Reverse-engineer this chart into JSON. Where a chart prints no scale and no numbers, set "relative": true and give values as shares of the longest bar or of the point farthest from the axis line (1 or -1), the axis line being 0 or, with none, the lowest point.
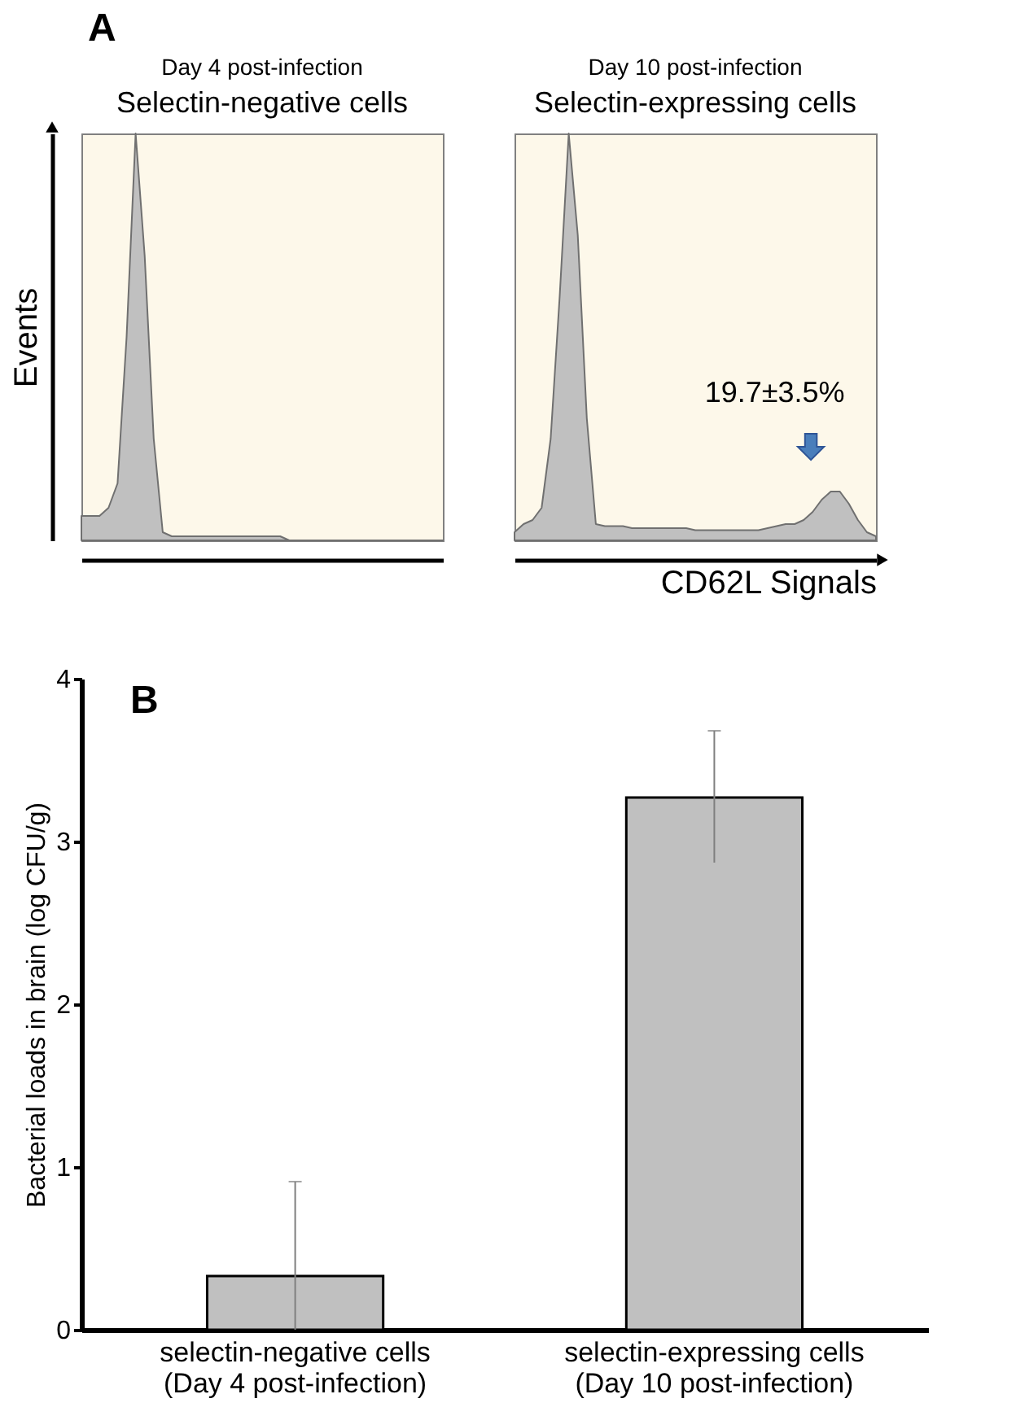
{
  "chart_data": [
    {
      "type": "area",
      "relative": true,
      "title": "Selectin-negative cells",
      "subtitle": "Day 4 post-infection",
      "ylabel": "Events",
      "tick_labels": false,
      "annotations": [
        "A"
      ],
      "categories": [
        null,
        null,
        null,
        null,
        null,
        null,
        null,
        null,
        null,
        null,
        null,
        null,
        null,
        null,
        null,
        null,
        null,
        null,
        null,
        null,
        null,
        null,
        null,
        null,
        null,
        null,
        null,
        null,
        null,
        null,
        null,
        null,
        null,
        null,
        null,
        null,
        null,
        null,
        null,
        null,
        null
      ],
      "series": [
        {
          "color": "#c0c0c0",
          "values": [
            0.06,
            0.06,
            0.06,
            0.08,
            0.14,
            0.5,
            1.0,
            0.7,
            0.25,
            0.02,
            0.01,
            0.01,
            0.01,
            0.01,
            0.01,
            0.01,
            0.01,
            0.01,
            0.01,
            0.01,
            0.01,
            0.01,
            0.01,
            0,
            0,
            0,
            0,
            0,
            0,
            0,
            0,
            0,
            0,
            0,
            0,
            0,
            0,
            0,
            0,
            0,
            0
          ]
        }
      ]
    },
    {
      "type": "area",
      "relative": true,
      "title": "Selectin-expressing cells",
      "subtitle": "Day 10 post-infection",
      "xlabel": "CD62L Signals",
      "tick_labels": false,
      "annotations": [
        "19.7±3.5%"
      ],
      "categories": [
        null,
        null,
        null,
        null,
        null,
        null,
        null,
        null,
        null,
        null,
        null,
        null,
        null,
        null,
        null,
        null,
        null,
        null,
        null,
        null,
        null,
        null,
        null,
        null,
        null,
        null,
        null,
        null,
        null,
        null,
        null,
        null,
        null,
        null,
        null,
        null,
        null,
        null,
        null,
        null,
        null
      ],
      "series": [
        {
          "color": "#c0c0c0",
          "values": [
            0.02,
            0.04,
            0.05,
            0.08,
            0.25,
            0.6,
            1.0,
            0.75,
            0.3,
            0.04,
            0.035,
            0.035,
            0.035,
            0.03,
            0.03,
            0.03,
            0.03,
            0.03,
            0.03,
            0.03,
            0.025,
            0.025,
            0.025,
            0.025,
            0.025,
            0.025,
            0.025,
            0.025,
            0.03,
            0.035,
            0.04,
            0.04,
            0.05,
            0.07,
            0.1,
            0.12,
            0.12,
            0.09,
            0.05,
            0.02,
            0.01
          ]
        }
      ]
    },
    {
      "type": "bar",
      "ylabel": "Bacterial loads in brain (log CFU/g)",
      "annotations": [
        "B"
      ],
      "ylim": [
        0,
        4
      ],
      "yticks": [
        0,
        1,
        2,
        3,
        4
      ],
      "grid": false,
      "categories": [
        "selectin-negative cells\n(Day 4 post-infection)",
        "selectin-expressing cells\n(Day 10 post-infection)"
      ],
      "series": [
        {
          "color": "#c0c0c0",
          "values": [
            0.33,
            3.27
          ],
          "errors": [
            [
              0,
              0.91
            ],
            [
              2.87,
              3.68
            ]
          ]
        }
      ]
    }
  ]
}
